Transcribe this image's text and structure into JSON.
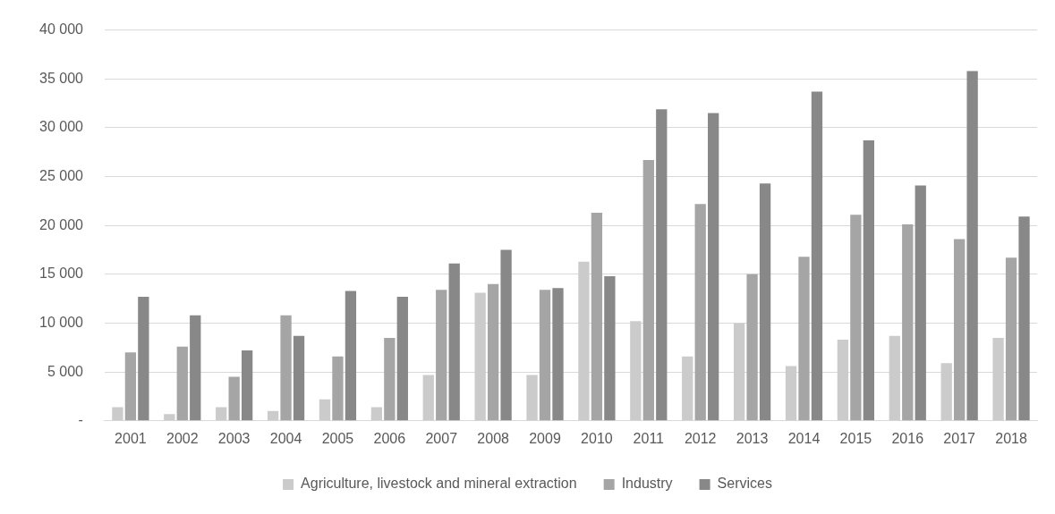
{
  "chart_data": {
    "type": "bar",
    "categories": [
      "2001",
      "2002",
      "2003",
      "2004",
      "2005",
      "2006",
      "2007",
      "2008",
      "2009",
      "2010",
      "2011",
      "2012",
      "2013",
      "2014",
      "2015",
      "2016",
      "2017",
      "2018"
    ],
    "series": [
      {
        "name": "Agriculture, livestock and mineral extraction",
        "color": "#cbcbcb",
        "values": [
          1400,
          700,
          1400,
          1000,
          2200,
          1400,
          4700,
          13100,
          4700,
          16300,
          10200,
          6600,
          10000,
          5600,
          8300,
          8700,
          5900,
          8500
        ]
      },
      {
        "name": "Industry",
        "color": "#a5a5a5",
        "values": [
          7000,
          7600,
          4500,
          10800,
          6600,
          8500,
          13400,
          14000,
          13400,
          21300,
          26700,
          22200,
          15000,
          16800,
          21100,
          20100,
          18600,
          16700
        ]
      },
      {
        "name": "Services",
        "color": "#888888",
        "values": [
          12700,
          10800,
          7200,
          8700,
          13300,
          12700,
          16100,
          17500,
          13600,
          14800,
          31900,
          31500,
          24300,
          33700,
          28700,
          24100,
          35800,
          20900
        ]
      }
    ],
    "ylim": [
      0,
      40000
    ],
    "yticks": [
      {
        "value": 0,
        "label": "-"
      },
      {
        "value": 5000,
        "label": "5 000"
      },
      {
        "value": 10000,
        "label": "10 000"
      },
      {
        "value": 15000,
        "label": "15 000"
      },
      {
        "value": 20000,
        "label": "20 000"
      },
      {
        "value": 25000,
        "label": "25 000"
      },
      {
        "value": 30000,
        "label": "30 000"
      },
      {
        "value": 35000,
        "label": "35 000"
      },
      {
        "value": 40000,
        "label": "40 000"
      }
    ],
    "grid": "y",
    "legend": "bottom"
  }
}
